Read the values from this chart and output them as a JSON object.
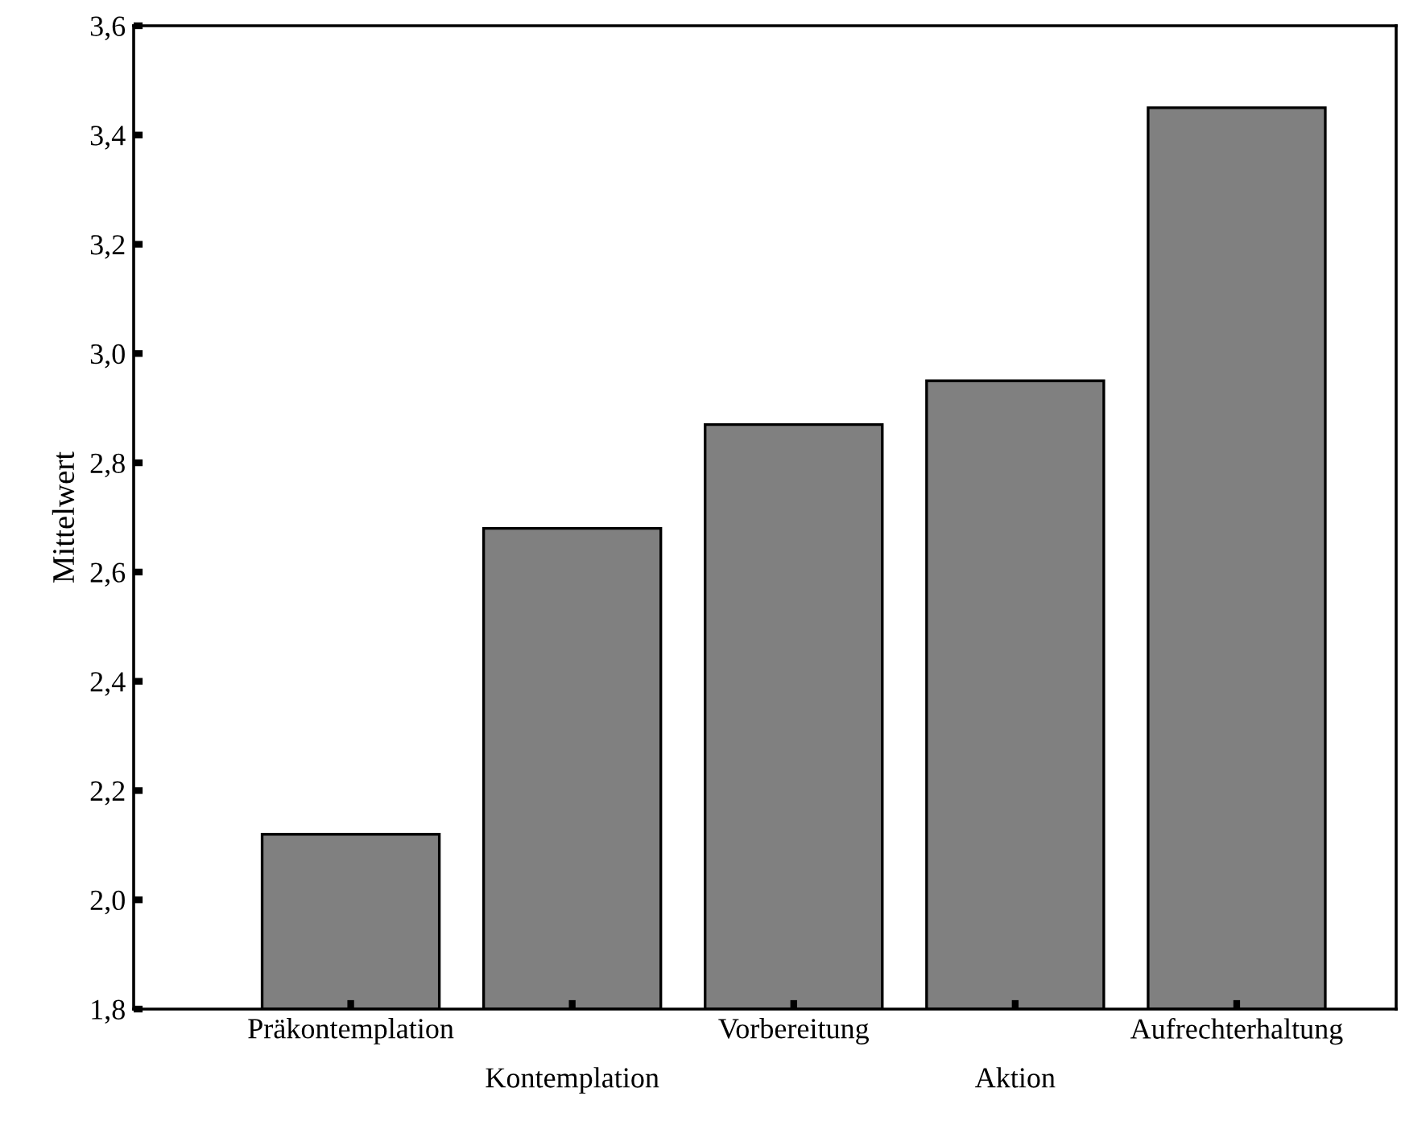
{
  "chart_data": {
    "type": "bar",
    "ylabel": "Mittelwert",
    "categories": [
      "Präkontemplation",
      "Kontemplation",
      "Vorbereitung",
      "Aktion",
      "Aufrechterhaltung"
    ],
    "values": [
      2.12,
      2.68,
      2.87,
      2.95,
      3.45
    ],
    "color": "#808080",
    "ylim": [
      1.8,
      3.6
    ],
    "yticks": [
      {
        "value": 1.8,
        "label": "1,8"
      },
      {
        "value": 2.0,
        "label": "2,0"
      },
      {
        "value": 2.2,
        "label": "2,2"
      },
      {
        "value": 2.4,
        "label": "2,4"
      },
      {
        "value": 2.6,
        "label": "2,6"
      },
      {
        "value": 2.8,
        "label": "2,8"
      },
      {
        "value": 3.0,
        "label": "3,0"
      },
      {
        "value": 3.2,
        "label": "3,2"
      },
      {
        "value": 3.4,
        "label": "3,4"
      },
      {
        "value": 3.6,
        "label": "3,6"
      }
    ],
    "grid": false
  }
}
